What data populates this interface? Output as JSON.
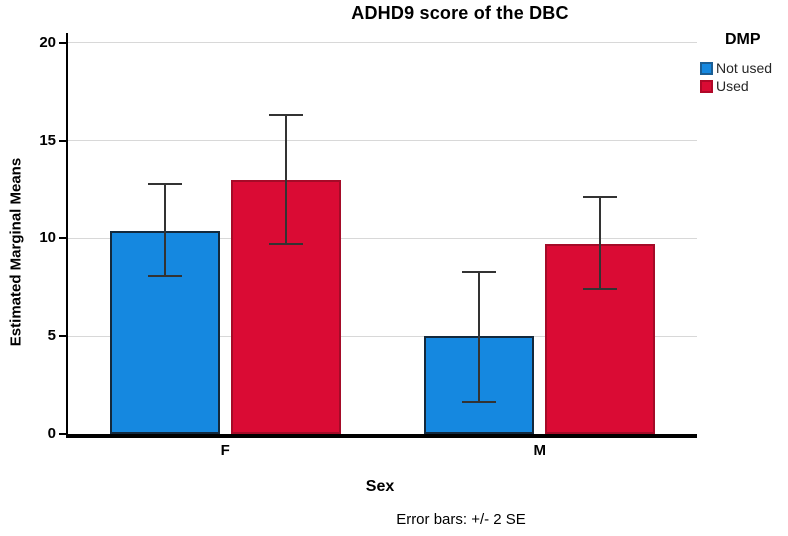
{
  "chart_data": {
    "type": "bar",
    "title": "ADHD9 score of the DBC",
    "xlabel": "Sex",
    "ylabel": "Estimated Marginal Means",
    "footnote": "Error bars: +/- 2 SE",
    "categories": [
      "F",
      "M"
    ],
    "series": [
      {
        "name": "Not used",
        "color": "#1588e0",
        "bar_border": "#13293d",
        "legend_border": "#1b5e94",
        "values": [
          10.4,
          5.0
        ],
        "error_low": [
          8.1,
          1.65
        ],
        "error_high": [
          12.8,
          8.3
        ]
      },
      {
        "name": "Used",
        "color": "#da0b34",
        "bar_border": "#a50b28",
        "legend_border": "#b00828",
        "values": [
          13.0,
          9.7
        ],
        "error_low": [
          9.7,
          7.4
        ],
        "error_high": [
          16.3,
          12.1
        ]
      }
    ],
    "yticks": [
      0,
      5,
      10,
      15,
      20
    ],
    "ylim": [
      0,
      20.5
    ],
    "grid": true,
    "legend_title": "DMP",
    "legend_position": "right",
    "error_bar_note": "+/- 2 SE"
  }
}
